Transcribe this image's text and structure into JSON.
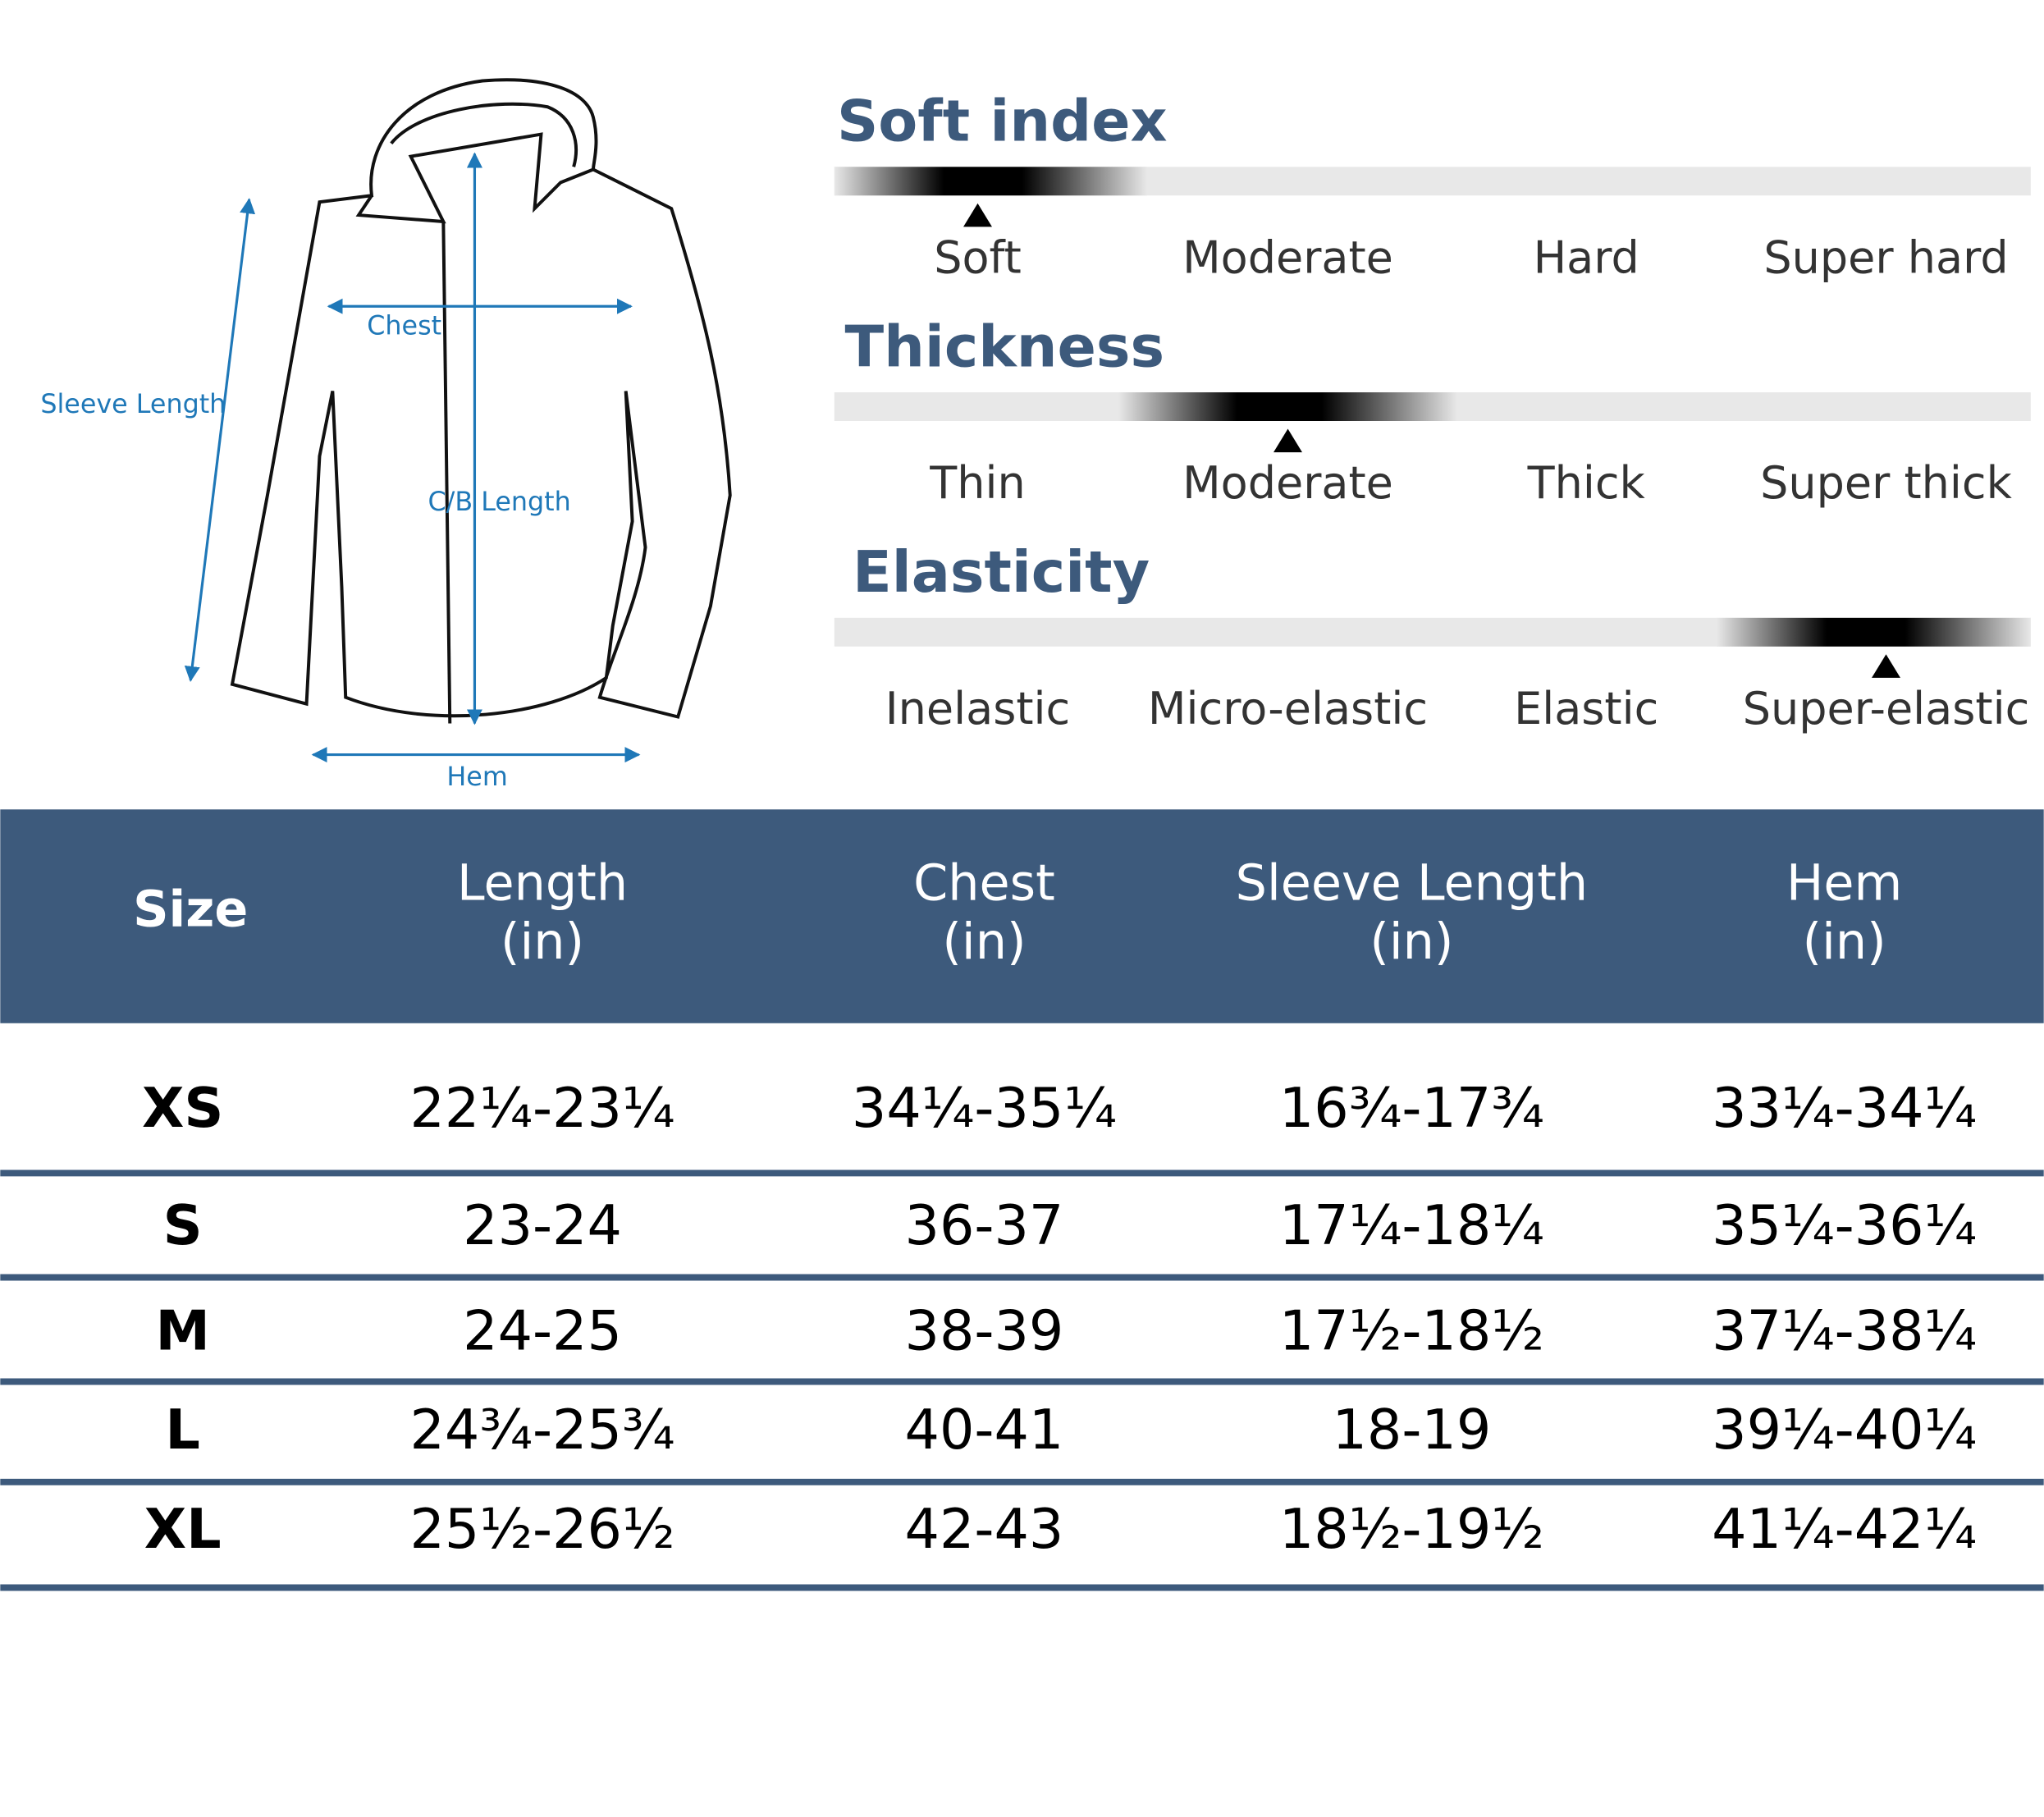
{
  "diagram": {
    "labels": {
      "chest": "Chest",
      "sleeve": "Sleeve Length",
      "length": "C/B Length",
      "hem": "Hem"
    }
  },
  "indices": [
    {
      "title": "Soft index",
      "options": [
        "Soft",
        "Moderate",
        "Hard",
        "Super hard"
      ],
      "selected": 0
    },
    {
      "title": "Thickness",
      "options": [
        "Thin",
        "Moderate",
        "Thick",
        "Super thick"
      ],
      "selected": 1
    },
    {
      "title": "Elasticity",
      "options": [
        "Inelastic",
        "Micro-elastic",
        "Elastic",
        "Super-elastic"
      ],
      "selected": 3
    }
  ],
  "table": {
    "header": [
      [
        "Size"
      ],
      [
        "Length",
        "(in)"
      ],
      [
        "Chest",
        "(in)"
      ],
      [
        "Sleeve Length",
        "(in)"
      ],
      [
        "Hem",
        "(in)"
      ]
    ],
    "rows": [
      [
        "XS",
        "22¼-23¼",
        "34¼-35¼",
        "16¾-17¾",
        "33¼-34¼"
      ],
      [
        "S",
        "23-24",
        "36-37",
        "17¼-18¼",
        "35¼-36¼"
      ],
      [
        "M",
        "24-25",
        "38-39",
        "17½-18½",
        "37¼-38¼"
      ],
      [
        "L",
        "24¾-25¾",
        "40-41",
        "18-19",
        "39¼-40¼"
      ],
      [
        "XL",
        "25½-26½",
        "42-43",
        "18½-19½",
        "41¼-42¼"
      ]
    ]
  }
}
